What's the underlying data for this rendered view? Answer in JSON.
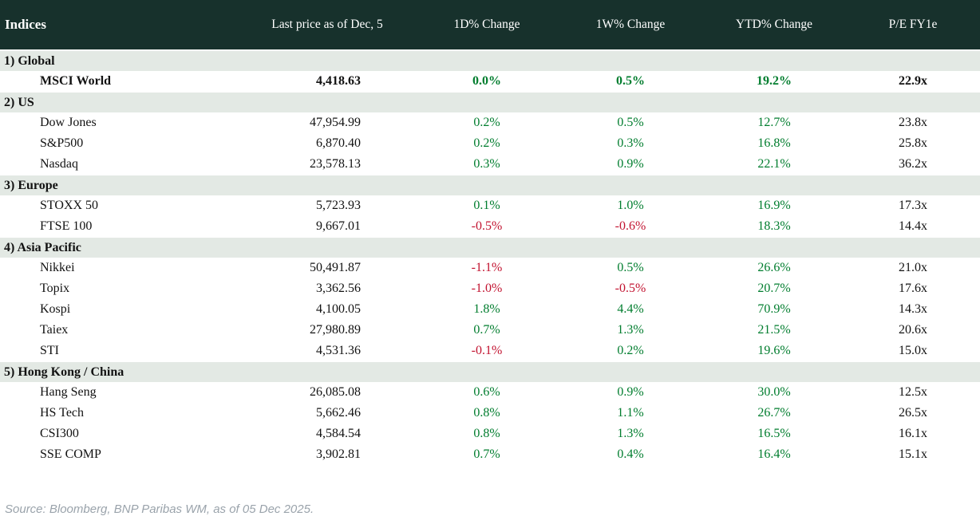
{
  "table": {
    "columns": [
      "Indices",
      "Last price as of Dec, 5",
      "1D% Change",
      "1W% Change",
      "YTD% Change",
      "P/E FY1e"
    ],
    "sections": [
      {
        "label": "1) Global",
        "rows": [
          {
            "name": "MSCI World",
            "price": "4,418.63",
            "d1": "0.0%",
            "w1": "0.5%",
            "ytd": "19.2%",
            "pe": "22.9x",
            "emphasis": true
          }
        ]
      },
      {
        "label": "2) US",
        "rows": [
          {
            "name": "Dow Jones",
            "price": "47,954.99",
            "d1": "0.2%",
            "w1": "0.5%",
            "ytd": "12.7%",
            "pe": "23.8x",
            "emphasis": false
          },
          {
            "name": "S&P500",
            "price": "6,870.40",
            "d1": "0.2%",
            "w1": "0.3%",
            "ytd": "16.8%",
            "pe": "25.8x",
            "emphasis": false
          },
          {
            "name": "Nasdaq",
            "price": "23,578.13",
            "d1": "0.3%",
            "w1": "0.9%",
            "ytd": "22.1%",
            "pe": "36.2x",
            "emphasis": false
          }
        ]
      },
      {
        "label": "3) Europe",
        "rows": [
          {
            "name": "STOXX 50",
            "price": "5,723.93",
            "d1": "0.1%",
            "w1": "1.0%",
            "ytd": "16.9%",
            "pe": "17.3x",
            "emphasis": false
          },
          {
            "name": "FTSE 100",
            "price": "9,667.01",
            "d1": "-0.5%",
            "w1": "-0.6%",
            "ytd": "18.3%",
            "pe": "14.4x",
            "emphasis": false
          }
        ]
      },
      {
        "label": "4) Asia Pacific",
        "rows": [
          {
            "name": "Nikkei",
            "price": "50,491.87",
            "d1": "-1.1%",
            "w1": "0.5%",
            "ytd": "26.6%",
            "pe": "21.0x",
            "emphasis": false
          },
          {
            "name": "Topix",
            "price": "3,362.56",
            "d1": "-1.0%",
            "w1": "-0.5%",
            "ytd": "20.7%",
            "pe": "17.6x",
            "emphasis": false
          },
          {
            "name": "Kospi",
            "price": "4,100.05",
            "d1": "1.8%",
            "w1": "4.4%",
            "ytd": "70.9%",
            "pe": "14.3x",
            "emphasis": false
          },
          {
            "name": "Taiex",
            "price": "27,980.89",
            "d1": "0.7%",
            "w1": "1.3%",
            "ytd": "21.5%",
            "pe": "20.6x",
            "emphasis": false
          },
          {
            "name": "STI",
            "price": "4,531.36",
            "d1": "-0.1%",
            "w1": "0.2%",
            "ytd": "19.6%",
            "pe": "15.0x",
            "emphasis": false
          }
        ]
      },
      {
        "label": "5) Hong Kong / China",
        "rows": [
          {
            "name": "Hang Seng",
            "price": "26,085.08",
            "d1": "0.6%",
            "w1": "0.9%",
            "ytd": "30.0%",
            "pe": "12.5x",
            "emphasis": false
          },
          {
            "name": "HS Tech",
            "price": "5,662.46",
            "d1": "0.8%",
            "w1": "1.1%",
            "ytd": "26.7%",
            "pe": "26.5x",
            "emphasis": false
          },
          {
            "name": "CSI300",
            "price": "4,584.54",
            "d1": "0.8%",
            "w1": "1.3%",
            "ytd": "16.5%",
            "pe": "16.1x",
            "emphasis": false
          },
          {
            "name": "SSE COMP",
            "price": "3,902.81",
            "d1": "0.7%",
            "w1": "0.4%",
            "ytd": "16.4%",
            "pe": "15.1x",
            "emphasis": false
          }
        ]
      }
    ]
  },
  "footer": {
    "source": "Source: Bloomberg, BNP Paribas WM, as of 05 Dec 2025."
  },
  "colors": {
    "header_bg": "#17312c",
    "header_text": "#ffffff",
    "section_bg": "#e3e9e4",
    "positive": "#007d2e",
    "negative": "#c21330",
    "body_text": "#121212",
    "source_text": "#9aa3ab"
  },
  "chart_data": {
    "type": "table",
    "title": "Indices",
    "columns": [
      "Indices",
      "Last price as of Dec, 5",
      "1D% Change",
      "1W% Change",
      "YTD% Change",
      "P/E FY1e"
    ],
    "rows": [
      [
        "MSCI World",
        4418.63,
        0.0,
        0.5,
        19.2,
        22.9
      ],
      [
        "Dow Jones",
        47954.99,
        0.2,
        0.5,
        12.7,
        23.8
      ],
      [
        "S&P500",
        6870.4,
        0.2,
        0.3,
        16.8,
        25.8
      ],
      [
        "Nasdaq",
        23578.13,
        0.3,
        0.9,
        22.1,
        36.2
      ],
      [
        "STOXX 50",
        5723.93,
        0.1,
        1.0,
        16.9,
        17.3
      ],
      [
        "FTSE 100",
        9667.01,
        -0.5,
        -0.6,
        18.3,
        14.4
      ],
      [
        "Nikkei",
        50491.87,
        -1.1,
        0.5,
        26.6,
        21.0
      ],
      [
        "Topix",
        3362.56,
        -1.0,
        -0.5,
        20.7,
        17.6
      ],
      [
        "Kospi",
        4100.05,
        1.8,
        4.4,
        70.9,
        14.3
      ],
      [
        "Taiex",
        27980.89,
        0.7,
        1.3,
        21.5,
        20.6
      ],
      [
        "STI",
        4531.36,
        -0.1,
        0.2,
        19.6,
        15.0
      ],
      [
        "Hang Seng",
        26085.08,
        0.6,
        0.9,
        30.0,
        12.5
      ],
      [
        "HS Tech",
        5662.46,
        0.8,
        1.1,
        26.7,
        26.5
      ],
      [
        "CSI300",
        4584.54,
        0.8,
        1.3,
        16.5,
        16.1
      ],
      [
        "SSE COMP",
        3902.81,
        0.7,
        0.4,
        16.4,
        15.1
      ]
    ]
  }
}
